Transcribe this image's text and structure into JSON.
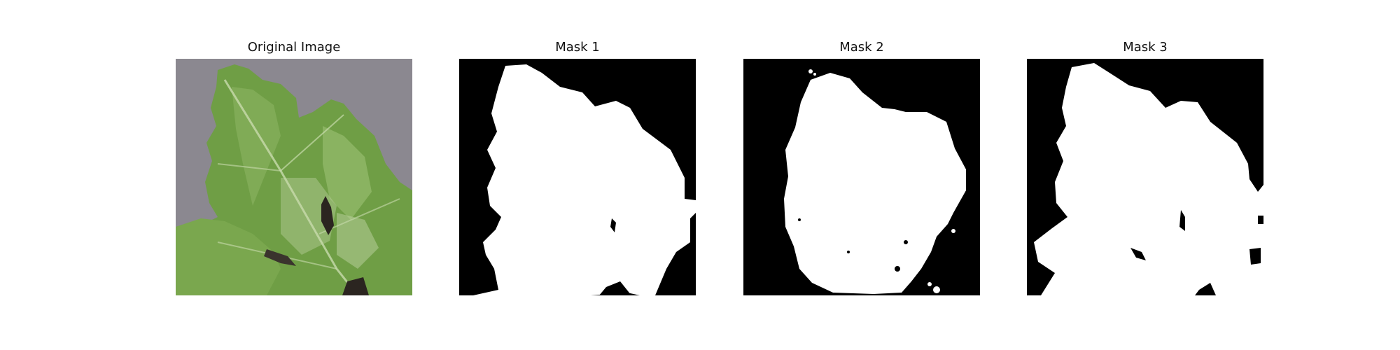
{
  "figure": {
    "panels": [
      {
        "title": "Original Image"
      },
      {
        "title": "Mask 1"
      },
      {
        "title": "Mask 2"
      },
      {
        "title": "Mask 3"
      }
    ]
  },
  "colors": {
    "mask_background": "#000000",
    "mask_foreground": "#ffffff",
    "photo_background": "#8f8d94",
    "leaf_green": "#6f9e45",
    "leaf_dark": "#557d32",
    "leaf_light": "#9cc274",
    "leaf_hole": "#2b2520"
  }
}
